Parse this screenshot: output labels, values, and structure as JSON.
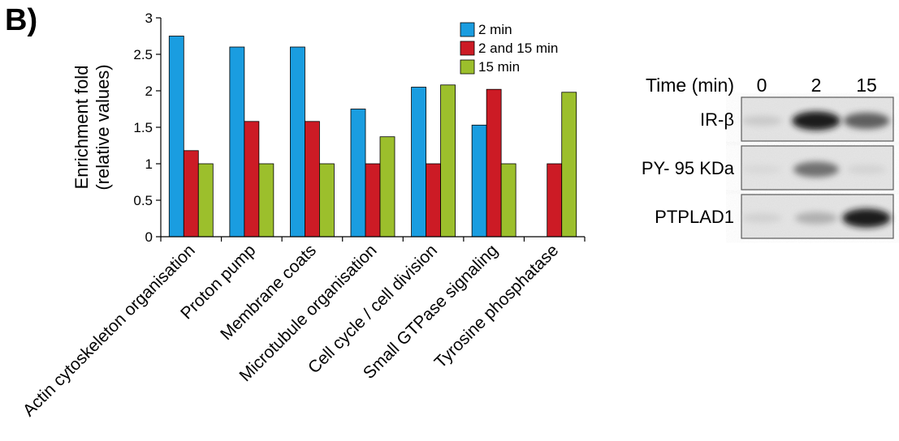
{
  "panel_label": "B)",
  "chart_data": {
    "type": "bar",
    "title": "",
    "ylabel_lines": [
      "Enrichment fold",
      "(relative values)"
    ],
    "xlabel": "",
    "ylim": [
      0,
      3
    ],
    "yticks": [
      "0",
      "0.5",
      "1",
      "1.5",
      "2",
      "2.5",
      "3"
    ],
    "grid": false,
    "legend_position": "top-right",
    "categories": [
      "Actin cytoskeleton organisation",
      "Proton pump",
      "Membrane coats",
      "Microtubule organisation",
      "Cell cycle / cell division",
      "Small GTPase signaling",
      "Tyrosine phosphatase"
    ],
    "series": [
      {
        "name": "2 min",
        "color": "#1a9de0",
        "values": [
          2.75,
          2.6,
          2.6,
          1.75,
          2.05,
          1.53,
          0
        ]
      },
      {
        "name": "2 and 15 min",
        "color": "#cc1b25",
        "values": [
          1.18,
          1.58,
          1.58,
          1.0,
          1.0,
          2.02,
          1.0
        ]
      },
      {
        "name": "15 min",
        "color": "#9cbf2c",
        "values": [
          1.0,
          1.0,
          1.0,
          1.37,
          2.08,
          1.0,
          1.98
        ]
      }
    ]
  },
  "blot": {
    "header_label": "Time (min)",
    "time_points": [
      "0",
      "2",
      "15"
    ],
    "rows": [
      {
        "label": "IR-β",
        "intensities": [
          0.18,
          0.95,
          0.72
        ]
      },
      {
        "label": "PY- 95 KDa",
        "intensities": [
          0.05,
          0.65,
          0.1
        ]
      },
      {
        "label": "PTPLAD1",
        "intensities": [
          0.12,
          0.35,
          0.95
        ]
      }
    ]
  }
}
